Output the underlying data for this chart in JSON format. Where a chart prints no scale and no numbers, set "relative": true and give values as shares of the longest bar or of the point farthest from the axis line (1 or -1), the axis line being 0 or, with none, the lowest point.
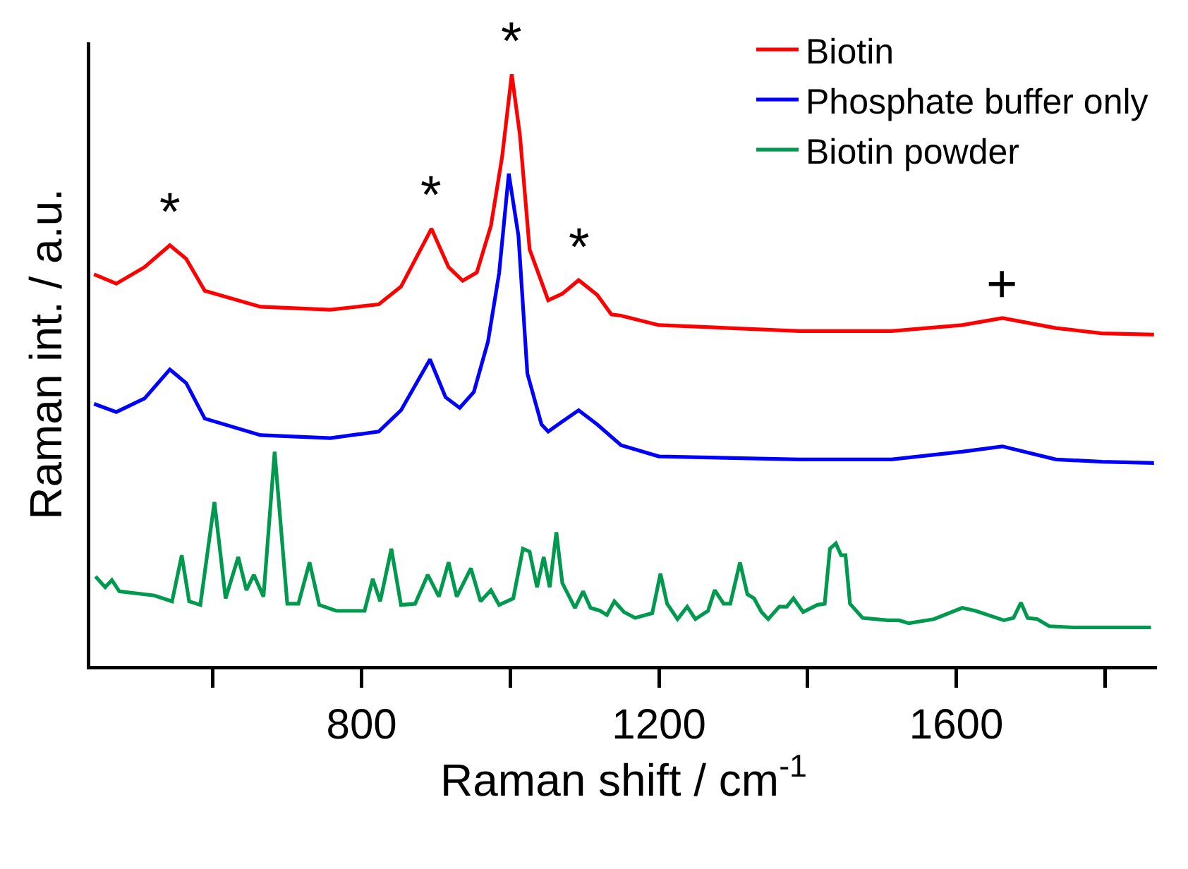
{
  "chart_data": {
    "type": "line",
    "relative": true,
    "xlabel": "Raman shift / cm$^{-1}$",
    "ylabel": "Raman int. / a.u.",
    "xlim": [
      435,
      1870
    ],
    "xticks": [
      {
        "value": 600,
        "label": null
      },
      800,
      {
        "value": 1000,
        "label": null
      },
      1200,
      {
        "value": 1400,
        "label": null
      },
      1600,
      {
        "value": 1800,
        "label": null
      }
    ],
    "grid": false,
    "legend": "top right",
    "marker": "none",
    "line_style": "solid",
    "series": [
      {
        "name": "Biotin",
        "color": "#ff0000",
        "x": [
          440,
          470,
          508,
          542,
          564,
          589,
          664,
          758,
          823,
          853,
          894,
          917,
          936,
          955,
          974,
          989,
          1002,
          1013,
          1026,
          1051,
          1070,
          1092,
          1117,
          1136,
          1149,
          1200,
          1389,
          1513,
          1608,
          1662,
          1734,
          1796,
          1866
        ],
        "values": [
          0.662,
          0.646,
          0.674,
          0.711,
          0.688,
          0.634,
          0.607,
          0.602,
          0.611,
          0.641,
          0.739,
          0.674,
          0.651,
          0.665,
          0.744,
          0.86,
          1,
          0.897,
          0.704,
          0.618,
          0.629,
          0.652,
          0.627,
          0.594,
          0.592,
          0.576,
          0.566,
          0.566,
          0.576,
          0.588,
          0.571,
          0.562,
          0.56
        ]
      },
      {
        "name": "Phosphate buffer only",
        "color": "#0000ff",
        "x": [
          440,
          470,
          508,
          542,
          564,
          589,
          664,
          758,
          823,
          853,
          892,
          913,
          932,
          951,
          970,
          985,
          998,
          1011,
          1023,
          1042,
          1051,
          1070,
          1092,
          1117,
          1149,
          1200,
          1389,
          1513,
          1608,
          1662,
          1734,
          1796,
          1866
        ],
        "values": [
          0.443,
          0.429,
          0.452,
          0.501,
          0.478,
          0.418,
          0.39,
          0.385,
          0.396,
          0.432,
          0.518,
          0.454,
          0.436,
          0.463,
          0.548,
          0.664,
          0.832,
          0.727,
          0.494,
          0.408,
          0.396,
          0.413,
          0.432,
          0.408,
          0.373,
          0.354,
          0.349,
          0.349,
          0.362,
          0.371,
          0.349,
          0.345,
          0.343
        ]
      },
      {
        "name": "Biotin powder",
        "color": "#009a4e",
        "x": [
          442,
          455,
          464,
          474,
          521,
          545,
          558,
          568,
          583,
          602,
          617,
          634,
          645,
          655,
          668,
          683,
          700,
          715,
          730,
          743,
          766,
          804,
          815,
          825,
          840,
          853,
          872,
          889,
          904,
          917,
          928,
          947,
          960,
          974,
          985,
          1004,
          1017,
          1026,
          1036,
          1045,
          1053,
          1062,
          1070,
          1087,
          1098,
          1108,
          1121,
          1130,
          1140,
          1153,
          1168,
          1191,
          1202,
          1211,
          1225,
          1238,
          1249,
          1266,
          1275,
          1287,
          1296,
          1309,
          1319,
          1328,
          1338,
          1347,
          1362,
          1372,
          1381,
          1394,
          1413,
          1423,
          1430,
          1438,
          1445,
          1451,
          1457,
          1474,
          1508,
          1523,
          1536,
          1570,
          1608,
          1626,
          1664,
          1677,
          1687,
          1696,
          1709,
          1725,
          1758,
          1862
        ],
        "values": [
          0.151,
          0.133,
          0.145,
          0.126,
          0.119,
          0.109,
          0.187,
          0.109,
          0.103,
          0.277,
          0.114,
          0.184,
          0.128,
          0.154,
          0.117,
          0.362,
          0.105,
          0.105,
          0.175,
          0.103,
          0.093,
          0.093,
          0.147,
          0.109,
          0.198,
          0.103,
          0.105,
          0.154,
          0.117,
          0.175,
          0.117,
          0.165,
          0.109,
          0.128,
          0.103,
          0.114,
          0.198,
          0.193,
          0.133,
          0.184,
          0.133,
          0.226,
          0.14,
          0.098,
          0.126,
          0.098,
          0.093,
          0.086,
          0.109,
          0.091,
          0.081,
          0.089,
          0.156,
          0.105,
          0.079,
          0.1,
          0.079,
          0.093,
          0.128,
          0.105,
          0.105,
          0.175,
          0.121,
          0.114,
          0.091,
          0.079,
          0.1,
          0.1,
          0.114,
          0.091,
          0.103,
          0.105,
          0.198,
          0.207,
          0.187,
          0.187,
          0.105,
          0.081,
          0.077,
          0.077,
          0.072,
          0.079,
          0.098,
          0.093,
          0.077,
          0.081,
          0.107,
          0.081,
          0.079,
          0.067,
          0.065,
          0.065
        ]
      }
    ],
    "annotations": [
      {
        "text": "*",
        "x": 542,
        "y": 0.711
      },
      {
        "text": "*",
        "x": 894,
        "y": 0.739
      },
      {
        "text": "*",
        "x": 1002,
        "y": 1
      },
      {
        "text": "*",
        "x": 1092,
        "y": 0.652
      },
      {
        "text": "+",
        "x": 1662,
        "y": 0.588
      }
    ]
  }
}
